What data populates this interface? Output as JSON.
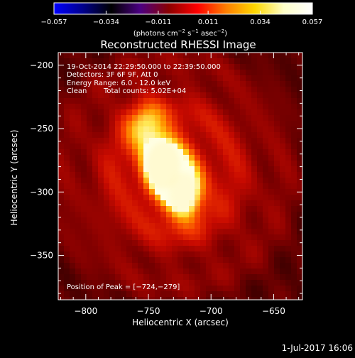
{
  "chart_data": {
    "type": "heatmap",
    "title": "Reconstructed RHESSI Image",
    "xlabel": "Heliocentric X (arcsec)",
    "ylabel": "Heliocentric Y (arcsec)",
    "xlim": [
      -822,
      -627
    ],
    "ylim": [
      -385,
      -190
    ],
    "x_ticks": [
      -800,
      -750,
      -700,
      -650
    ],
    "x_tick_labels": [
      "−800",
      "−750",
      "−700",
      "−650"
    ],
    "y_ticks": [
      -200,
      -250,
      -300,
      -350
    ],
    "y_tick_labels": [
      "−200",
      "−250",
      "−300",
      "−350"
    ],
    "colorbar": {
      "min": -0.057,
      "max": 0.057,
      "ticks": [
        -0.057,
        -0.034,
        -0.011,
        0.011,
        0.034,
        0.057
      ],
      "tick_labels": [
        "−0.057",
        "−0.034",
        "−0.011",
        "0.011",
        "0.034",
        "0.057"
      ],
      "units_prefix": "(photons cm",
      "units_exp1": "−2",
      "units_mid1": " s",
      "units_exp2": "−1",
      "units_mid2": " asec",
      "units_exp3": "−2",
      "units_suffix": ")",
      "colors": [
        "#0000ff",
        "#00008c",
        "#000000",
        "#4b0082",
        "#8b0000",
        "#ff0000",
        "#ff7f00",
        "#ffd700",
        "#ffffc8",
        "#ffffff"
      ]
    },
    "sources": [
      {
        "x": -738,
        "y": -279,
        "amp": 0.057
      },
      {
        "x": -722,
        "y": -301,
        "amp": 0.048
      },
      {
        "x": -752,
        "y": -250,
        "amp": 0.028
      }
    ],
    "peak": {
      "x": -724,
      "y": -279
    }
  },
  "info": {
    "line1": "19-Oct-2014 22:29:50.000 to 22:39:50.000",
    "line2": "Detectors: 3F 6F 9F, Att 0",
    "line3": "Energy Range: 6.0 - 12.0 keV",
    "line4_a": "Clean",
    "line4_b": "Total counts: 5.02E+04",
    "peak_text": "Position of Peak = [−724,−279]"
  },
  "footer": {
    "date": "1-Jul-2017 16:06"
  }
}
